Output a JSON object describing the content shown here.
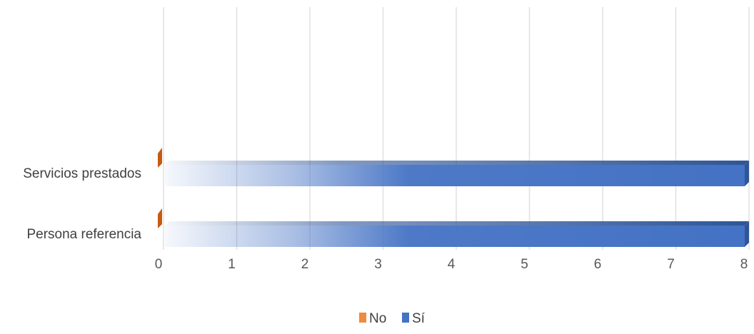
{
  "chart_data": {
    "type": "bar",
    "orientation": "horizontal",
    "title": "",
    "xlabel": "",
    "ylabel": "",
    "categories": [
      "Persona referencia",
      "Servicios prestados"
    ],
    "series": [
      {
        "name": "No",
        "values": [
          0,
          0
        ],
        "color": "#ED7D31"
      },
      {
        "name": "Sí",
        "values": [
          8,
          8
        ],
        "color": "#4472C4"
      }
    ],
    "xlim": [
      0,
      8
    ],
    "x_ticks": [
      "0",
      "1",
      "2",
      "3",
      "4",
      "5",
      "6",
      "7",
      "8"
    ],
    "grid": "vertical",
    "legend": "bottom",
    "style": "3d-gradient"
  }
}
